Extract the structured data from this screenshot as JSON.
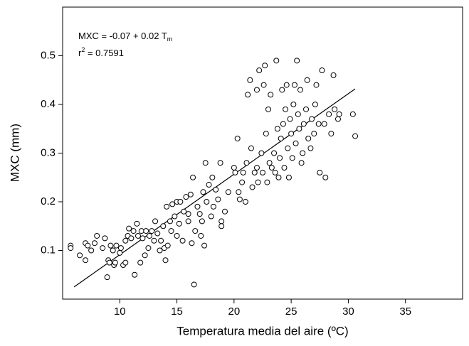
{
  "chart_data": {
    "type": "scatter",
    "x_label": "Temperatura media del aire (ºC)",
    "y_label": "MXC (mm)",
    "equation": {
      "text": "MXC = -0.07 + 0.02 T",
      "subscript": "m"
    },
    "r2": {
      "text": "r",
      "superscript": "2",
      "value_text": " = 0.7591"
    },
    "xlim": [
      5,
      40
    ],
    "ylim": [
      0,
      0.6
    ],
    "xticks": [
      10,
      15,
      20,
      25,
      30,
      35
    ],
    "yticks": [
      0.1,
      0.2,
      0.3,
      0.4,
      0.5
    ],
    "marker_color": "#000000",
    "x": [
      5.7,
      5.7,
      6.5,
      7,
      7,
      7.2,
      7.5,
      7.8,
      8,
      8.5,
      8.7,
      8.9,
      9,
      9.1,
      9.2,
      9.4,
      9.5,
      9.6,
      9.7,
      10,
      10.1,
      10.3,
      10.5,
      10.5,
      10.7,
      10.8,
      11,
      11.2,
      11.3,
      11.5,
      11.6,
      11.8,
      11.9,
      12,
      12.2,
      12.3,
      12.5,
      12.6,
      12.8,
      13,
      13.1,
      13.3,
      13.5,
      13.6,
      13.8,
      13.9,
      14,
      14.1,
      14.2,
      14.4,
      14.5,
      14.6,
      14.8,
      15,
      15,
      15.2,
      15.3,
      15.5,
      15.6,
      15.8,
      16,
      16,
      16.2,
      16.3,
      16.4,
      16.5,
      16.6,
      16.8,
      17,
      17.1,
      17.2,
      17.3,
      17.4,
      17.5,
      17.6,
      17.8,
      18,
      18.1,
      18.2,
      18.4,
      18.6,
      18.8,
      18.9,
      18.9,
      19.2,
      19.5,
      20,
      20.1,
      20.3,
      20.4,
      20.5,
      20.7,
      20.8,
      21,
      21.1,
      21.2,
      21.4,
      21.5,
      21.6,
      21.8,
      22,
      22,
      22.1,
      22.2,
      22.4,
      22.5,
      22.6,
      22.7,
      22.8,
      22.9,
      23,
      23.1,
      23.2,
      23.3,
      23.5,
      23.6,
      23.7,
      23.8,
      23.9,
      24,
      24.1,
      24.2,
      24.3,
      24.4,
      24.5,
      24.6,
      24.7,
      24.8,
      24.9,
      25,
      25.1,
      25.2,
      25.3,
      25.4,
      25.5,
      25.6,
      25.7,
      25.8,
      25.9,
      26,
      26.1,
      26.3,
      26.4,
      26.5,
      26.7,
      26.8,
      27,
      27.1,
      27.2,
      27.4,
      27.5,
      27.7,
      27.9,
      28,
      28.3,
      28.5,
      28.7,
      28.8,
      29.1,
      29.2,
      30.4,
      30.6
    ],
    "y": [
      0.11,
      0.105,
      0.09,
      0.08,
      0.115,
      0.11,
      0.1,
      0.115,
      0.13,
      0.105,
      0.125,
      0.045,
      0.08,
      0.075,
      0.11,
      0.1,
      0.07,
      0.075,
      0.11,
      0.095,
      0.105,
      0.07,
      0.075,
      0.12,
      0.13,
      0.145,
      0.125,
      0.14,
      0.05,
      0.155,
      0.13,
      0.075,
      0.14,
      0.125,
      0.09,
      0.14,
      0.105,
      0.13,
      0.14,
      0.12,
      0.16,
      0.135,
      0.1,
      0.12,
      0.15,
      0.105,
      0.08,
      0.19,
      0.11,
      0.16,
      0.14,
      0.195,
      0.17,
      0.2,
      0.13,
      0.155,
      0.2,
      0.12,
      0.18,
      0.21,
      0.175,
      0.16,
      0.215,
      0.115,
      0.25,
      0.03,
      0.14,
      0.19,
      0.175,
      0.13,
      0.16,
      0.22,
      0.11,
      0.28,
      0.2,
      0.235,
      0.17,
      0.25,
      0.19,
      0.225,
      0.205,
      0.28,
      0.16,
      0.15,
      0.18,
      0.22,
      0.27,
      0.26,
      0.33,
      0.22,
      0.205,
      0.24,
      0.26,
      0.2,
      0.28,
      0.42,
      0.45,
      0.31,
      0.23,
      0.26,
      0.43,
      0.27,
      0.24,
      0.47,
      0.3,
      0.26,
      0.44,
      0.48,
      0.34,
      0.24,
      0.39,
      0.28,
      0.42,
      0.27,
      0.3,
      0.26,
      0.49,
      0.35,
      0.25,
      0.29,
      0.33,
      0.43,
      0.36,
      0.27,
      0.39,
      0.44,
      0.31,
      0.25,
      0.37,
      0.34,
      0.29,
      0.4,
      0.44,
      0.32,
      0.49,
      0.38,
      0.35,
      0.43,
      0.28,
      0.3,
      0.36,
      0.39,
      0.45,
      0.33,
      0.31,
      0.37,
      0.34,
      0.4,
      0.44,
      0.36,
      0.26,
      0.47,
      0.36,
      0.25,
      0.38,
      0.34,
      0.46,
      0.39,
      0.37,
      0.38,
      0.38,
      0.335
    ],
    "fit_line": {
      "x": [
        6,
        30.6
      ],
      "y": [
        0.025,
        0.432
      ]
    }
  }
}
